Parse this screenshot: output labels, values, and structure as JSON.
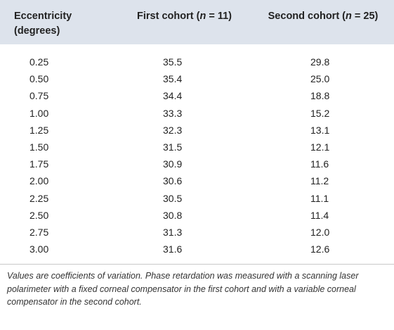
{
  "table": {
    "headers": {
      "eccentricity_line1": "Eccentricity",
      "eccentricity_line2": "(degrees)",
      "first_prefix": "First cohort (",
      "first_n": "n",
      "first_suffix": " = 11)",
      "second_prefix": "Second cohort (",
      "second_n": "n",
      "second_suffix": " = 25)"
    },
    "rows": [
      {
        "eccentricity": "0.25",
        "first": "35.5",
        "second": "29.8"
      },
      {
        "eccentricity": "0.50",
        "first": "35.4",
        "second": "25.0"
      },
      {
        "eccentricity": "0.75",
        "first": "34.4",
        "second": "18.8"
      },
      {
        "eccentricity": "1.00",
        "first": "33.3",
        "second": "15.2"
      },
      {
        "eccentricity": "1.25",
        "first": "32.3",
        "second": "13.1"
      },
      {
        "eccentricity": "1.50",
        "first": "31.5",
        "second": "12.1"
      },
      {
        "eccentricity": "1.75",
        "first": "30.9",
        "second": "11.6"
      },
      {
        "eccentricity": "2.00",
        "first": "30.6",
        "second": "11.2"
      },
      {
        "eccentricity": "2.25",
        "first": "30.5",
        "second": "11.1"
      },
      {
        "eccentricity": "2.50",
        "first": "30.8",
        "second": "11.4"
      },
      {
        "eccentricity": "2.75",
        "first": "31.3",
        "second": "12.0"
      },
      {
        "eccentricity": "3.00",
        "first": "31.6",
        "second": "12.6"
      }
    ],
    "caption": "Values are coefficients of variation. Phase retardation was measured with a scanning laser polarimeter with a fixed corneal compensator in the first cohort and with a variable corneal compensator in the second cohort."
  }
}
